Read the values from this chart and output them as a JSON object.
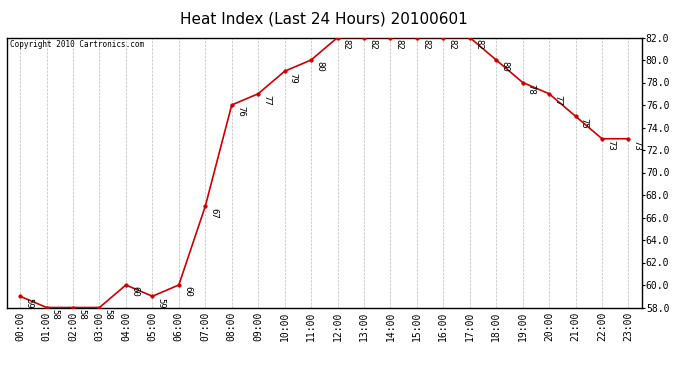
{
  "title": "Heat Index (Last 24 Hours) 20100601",
  "copyright": "Copyright 2010 Cartronics.com",
  "hours": [
    "00:00",
    "01:00",
    "02:00",
    "03:00",
    "04:00",
    "05:00",
    "06:00",
    "07:00",
    "08:00",
    "09:00",
    "10:00",
    "11:00",
    "12:00",
    "13:00",
    "14:00",
    "15:00",
    "16:00",
    "17:00",
    "18:00",
    "19:00",
    "20:00",
    "21:00",
    "22:00",
    "23:00"
  ],
  "values": [
    59,
    58,
    58,
    58,
    60,
    59,
    60,
    67,
    76,
    77,
    79,
    80,
    82,
    82,
    82,
    82,
    82,
    82,
    80,
    78,
    77,
    75,
    73,
    73
  ],
  "ylim_min": 58.0,
  "ylim_max": 82.0,
  "line_color": "#cc0000",
  "marker_color": "#cc0000",
  "bg_color": "#ffffff",
  "grid_color": "#bbbbbb",
  "title_fontsize": 11,
  "label_fontsize": 7,
  "annotation_fontsize": 6.5
}
